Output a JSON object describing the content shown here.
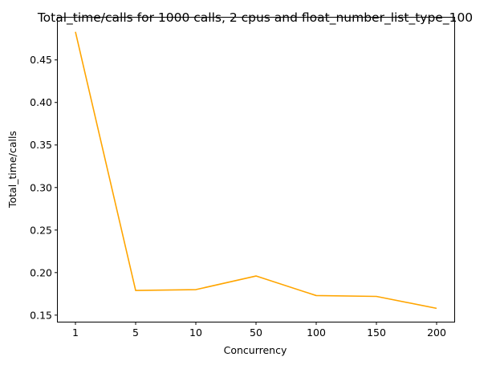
{
  "chart_data": {
    "type": "line",
    "title": "Total_time/calls for 1000 calls, 2 cpus and float_number_list_type_100",
    "xlabel": "Concurrency",
    "ylabel": "Total_time/calls",
    "categories": [
      "1",
      "5",
      "10",
      "50",
      "100",
      "150",
      "200"
    ],
    "series": [
      {
        "values": [
          0.483,
          0.179,
          0.18,
          0.196,
          0.173,
          0.172,
          0.158
        ],
        "color": "#ffa500"
      }
    ],
    "ylim": [
      0.1423,
      0.4997
    ],
    "yticks": [
      0.15,
      0.2,
      0.25,
      0.3,
      0.35,
      0.4,
      0.45
    ],
    "ytick_labels": [
      "0.15",
      "0.20",
      "0.25",
      "0.30",
      "0.35",
      "0.40",
      "0.45"
    ],
    "grid": false,
    "legend": "none"
  }
}
